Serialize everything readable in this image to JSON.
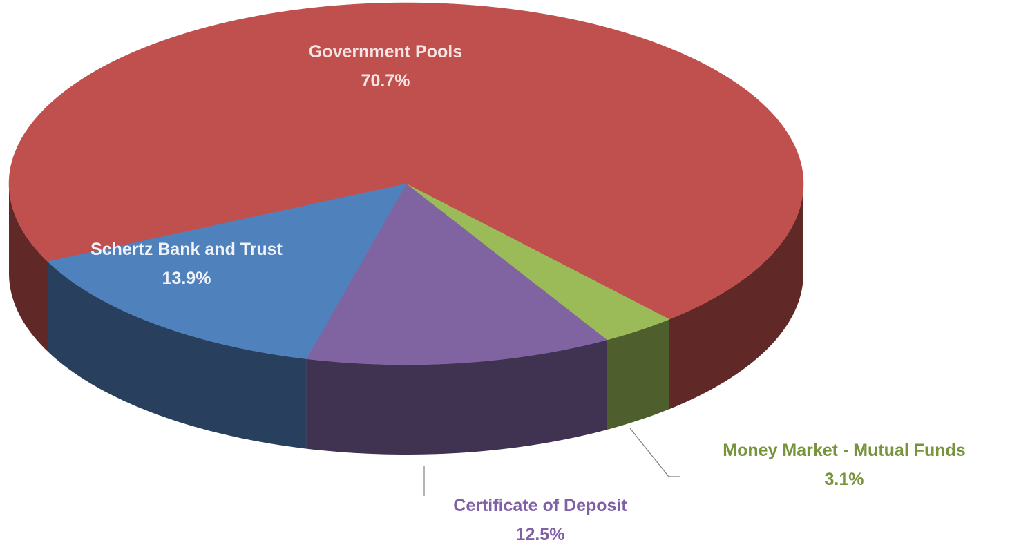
{
  "chart_data": {
    "type": "pie",
    "categories": [
      "Government Pools",
      "Money Market - Mutual Funds",
      "Certificate of Deposit",
      "Schertz Bank and Trust"
    ],
    "values": [
      70.7,
      3.1,
      12.5,
      13.9
    ],
    "value_labels": [
      "70.7%",
      "3.1%",
      "12.5%",
      "13.9%"
    ],
    "colors": [
      "#c0504d",
      "#9bbb59",
      "#8064a2",
      "#4f81bd"
    ],
    "label_colors": [
      "#f4e4e3",
      "#77933c",
      "#7f5fa6",
      "#f0f4fa"
    ]
  }
}
